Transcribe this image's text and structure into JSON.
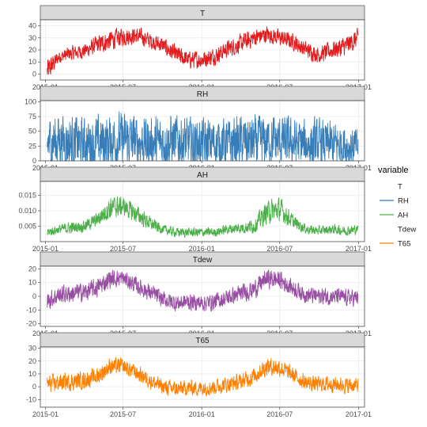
{
  "chart_data": {
    "type": "line",
    "x_tick_labels": [
      "2015-01",
      "2015-07",
      "2016-01",
      "2016-07",
      "2017-01"
    ],
    "x_tick_dates": [
      "2015-01-01",
      "2015-07-01",
      "2016-01-01",
      "2016-07-01",
      "2017-01-01"
    ],
    "xlim": [
      "2014-12-20",
      "2017-01-15"
    ],
    "grid": true,
    "legend": {
      "title": "variable",
      "placement": "right",
      "entries": [
        {
          "label": "T",
          "color": "#e41a1c",
          "swatch_visible": false
        },
        {
          "label": "RH",
          "color": "#377eb8",
          "swatch_visible": true
        },
        {
          "label": "AH",
          "color": "#4daf4a",
          "swatch_visible": true
        },
        {
          "label": "Tdew",
          "color": "#984ea3",
          "swatch_visible": false
        },
        {
          "label": "T65",
          "color": "#ff7f00",
          "swatch_visible": true
        }
      ]
    },
    "facets": [
      {
        "name": "T",
        "strip_label": "T",
        "color": "#e41a1c",
        "ylim": [
          -5,
          45
        ],
        "y_ticks": [
          0,
          10,
          20,
          30,
          40
        ],
        "y_tick_labels": [
          "0",
          "10",
          "20",
          "30",
          "40"
        ],
        "x": [
          "2015-01-05",
          "2015-02-01",
          "2015-03-01",
          "2015-04-01",
          "2015-05-01",
          "2015-06-01",
          "2015-07-01",
          "2015-08-01",
          "2015-09-01",
          "2015-10-01",
          "2015-11-01",
          "2015-12-01",
          "2016-01-01",
          "2016-02-01",
          "2016-03-01",
          "2016-04-01",
          "2016-05-01",
          "2016-06-01",
          "2016-07-01",
          "2016-08-01",
          "2016-09-01",
          "2016-10-01",
          "2016-11-01",
          "2016-12-01",
          "2016-12-31"
        ],
        "values": [
          2,
          14,
          17,
          19,
          24,
          28,
          31,
          32,
          28,
          24,
          16,
          12,
          12,
          15,
          21,
          25,
          30,
          33,
          30,
          27,
          20,
          16,
          20,
          23,
          30
        ],
        "band": [
          14,
          7,
          8,
          8,
          10,
          11,
          10,
          9,
          9,
          9,
          10,
          9,
          10,
          9,
          9,
          10,
          10,
          9,
          9,
          9,
          9,
          9,
          10,
          11,
          10
        ]
      },
      {
        "name": "RH",
        "strip_label": "RH",
        "color": "#377eb8",
        "ylim": [
          0,
          102
        ],
        "y_ticks": [
          0,
          25,
          50,
          75,
          100
        ],
        "y_tick_labels": [
          "0",
          "25",
          "50",
          "75",
          "100"
        ],
        "x": [
          "2015-01-05",
          "2015-02-01",
          "2015-03-01",
          "2015-04-01",
          "2015-05-01",
          "2015-06-01",
          "2015-07-01",
          "2015-08-01",
          "2015-09-01",
          "2015-10-01",
          "2015-11-01",
          "2015-12-01",
          "2016-01-01",
          "2016-02-01",
          "2016-03-01",
          "2016-04-01",
          "2016-05-01",
          "2016-06-01",
          "2016-07-01",
          "2016-08-01",
          "2016-09-01",
          "2016-10-01",
          "2016-11-01",
          "2016-12-01",
          "2016-12-31"
        ],
        "values": [
          30,
          35,
          32,
          28,
          30,
          34,
          36,
          34,
          30,
          32,
          34,
          30,
          28,
          30,
          29,
          32,
          30,
          33,
          34,
          30,
          28,
          30,
          28,
          26,
          22
        ],
        "band": [
          60,
          62,
          60,
          58,
          60,
          60,
          60,
          58,
          56,
          58,
          60,
          56,
          56,
          58,
          56,
          58,
          58,
          56,
          56,
          54,
          54,
          52,
          50,
          48,
          40
        ]
      },
      {
        "name": "AH",
        "strip_label": "AH",
        "color": "#4daf4a",
        "ylim": [
          0,
          0.0195
        ],
        "y_ticks": [
          0.005,
          0.01,
          0.015
        ],
        "y_tick_labels": [
          "0.005",
          "0.010",
          "0.015"
        ],
        "x": [
          "2015-01-05",
          "2015-02-01",
          "2015-03-01",
          "2015-04-01",
          "2015-05-01",
          "2015-06-01",
          "2015-07-01",
          "2015-08-01",
          "2015-09-01",
          "2015-10-01",
          "2015-11-01",
          "2015-12-01",
          "2016-01-01",
          "2016-02-01",
          "2016-03-01",
          "2016-04-01",
          "2016-05-01",
          "2016-06-01",
          "2016-07-01",
          "2016-08-01",
          "2016-09-01",
          "2016-10-01",
          "2016-11-01",
          "2016-12-01",
          "2016-12-31"
        ],
        "values": [
          0.003,
          0.004,
          0.0045,
          0.005,
          0.007,
          0.011,
          0.0115,
          0.009,
          0.006,
          0.004,
          0.003,
          0.003,
          0.003,
          0.003,
          0.004,
          0.0045,
          0.005,
          0.0095,
          0.0105,
          0.0065,
          0.004,
          0.0035,
          0.004,
          0.0035,
          0.004
        ],
        "band": [
          0.002,
          0.002,
          0.0025,
          0.0025,
          0.003,
          0.005,
          0.004,
          0.004,
          0.003,
          0.002,
          0.002,
          0.002,
          0.002,
          0.002,
          0.002,
          0.0025,
          0.003,
          0.005,
          0.005,
          0.003,
          0.002,
          0.002,
          0.002,
          0.002,
          0.002
        ]
      },
      {
        "name": "Tdew",
        "strip_label": "Tdew",
        "color": "#984ea3",
        "ylim": [
          -22,
          22
        ],
        "y_ticks": [
          -20,
          -10,
          0,
          10,
          20
        ],
        "y_tick_labels": [
          "-20",
          "-10",
          "0",
          "10",
          "20"
        ],
        "x": [
          "2015-01-05",
          "2015-02-01",
          "2015-03-01",
          "2015-04-01",
          "2015-05-01",
          "2015-06-01",
          "2015-07-01",
          "2015-08-01",
          "2015-09-01",
          "2015-10-01",
          "2015-11-01",
          "2015-12-01",
          "2016-01-01",
          "2016-02-01",
          "2016-03-01",
          "2016-04-01",
          "2016-05-01",
          "2016-06-01",
          "2016-07-01",
          "2016-08-01",
          "2016-09-01",
          "2016-10-01",
          "2016-11-01",
          "2016-12-01",
          "2016-12-31"
        ],
        "values": [
          -3,
          1,
          2,
          3,
          6,
          13,
          13,
          8,
          3,
          -2,
          -5,
          -4,
          -5,
          -4,
          -1,
          2,
          5,
          13,
          12,
          6,
          1,
          0,
          0,
          -1,
          -1
        ],
        "band": [
          9,
          9,
          9,
          9,
          9,
          9,
          8,
          8,
          8,
          8,
          8,
          8,
          8,
          8,
          8,
          8,
          9,
          9,
          9,
          8,
          8,
          8,
          8,
          8,
          8
        ]
      },
      {
        "name": "T65",
        "strip_label": "T65",
        "color": "#ff7f00",
        "ylim": [
          -16,
          31
        ],
        "y_ticks": [
          -10,
          0,
          10,
          20,
          30
        ],
        "y_tick_labels": [
          "-10",
          "0",
          "10",
          "20",
          "30"
        ],
        "x": [
          "2015-01-05",
          "2015-02-01",
          "2015-03-01",
          "2015-04-01",
          "2015-05-01",
          "2015-06-01",
          "2015-07-01",
          "2015-08-01",
          "2015-09-01",
          "2015-10-01",
          "2015-11-01",
          "2015-12-01",
          "2016-01-01",
          "2016-02-01",
          "2016-03-01",
          "2016-04-01",
          "2016-05-01",
          "2016-06-01",
          "2016-07-01",
          "2016-08-01",
          "2016-09-01",
          "2016-10-01",
          "2016-11-01",
          "2016-12-01",
          "2016-12-31"
        ],
        "values": [
          2,
          3,
          4,
          5,
          8,
          16,
          16,
          11,
          5,
          0,
          -2,
          -1,
          -1,
          0,
          2,
          4,
          8,
          16,
          15,
          9,
          3,
          2,
          2,
          1,
          1
        ],
        "band": [
          9,
          9,
          9,
          9,
          9,
          9,
          8,
          8,
          8,
          8,
          8,
          8,
          8,
          8,
          8,
          8,
          9,
          9,
          9,
          8,
          8,
          8,
          8,
          8,
          8
        ]
      }
    ]
  }
}
